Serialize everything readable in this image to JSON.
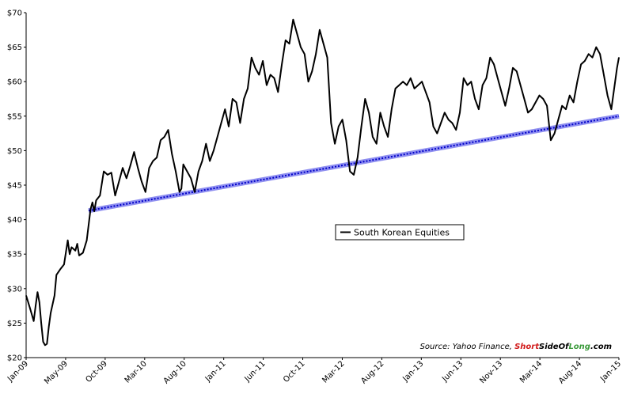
{
  "chart_data": {
    "type": "line",
    "title": "",
    "xlabel": "",
    "ylabel": "",
    "ylim": [
      20,
      70
    ],
    "xlim": [
      "2009-01-01",
      "2015-01-01"
    ],
    "y_ticks": [
      "$20",
      "$25",
      "$30",
      "$35",
      "$40",
      "$45",
      "$50",
      "$55",
      "$60",
      "$65",
      "$70"
    ],
    "x_tick_labels": [
      "Jan-09",
      "May-09",
      "Oct-09",
      "Mar-10",
      "Aug-10",
      "Jan-11",
      "Jun-11",
      "Oct-11",
      "Mar-12",
      "Aug-12",
      "Jan-13",
      "Jun-13",
      "Nov-13",
      "Mar-14",
      "Aug-14",
      "Jan-15"
    ],
    "grid": false,
    "legend": {
      "placement": "center-right",
      "entries": [
        "South Korean Equities"
      ]
    },
    "series": [
      {
        "name": "South Korean Equities",
        "color": "#000000",
        "points": [
          [
            "2009-01-01",
            29.0
          ],
          [
            "2009-01-15",
            27.2
          ],
          [
            "2009-01-29",
            25.3
          ],
          [
            "2009-02-05",
            27.5
          ],
          [
            "2009-02-12",
            29.5
          ],
          [
            "2009-02-19",
            28.0
          ],
          [
            "2009-02-26",
            25.0
          ],
          [
            "2009-03-05",
            22.3
          ],
          [
            "2009-03-12",
            21.8
          ],
          [
            "2009-03-19",
            22.0
          ],
          [
            "2009-03-26",
            24.5
          ],
          [
            "2009-04-02",
            26.5
          ],
          [
            "2009-04-16",
            29.0
          ],
          [
            "2009-04-23",
            32.0
          ],
          [
            "2009-05-07",
            32.8
          ],
          [
            "2009-05-21",
            33.5
          ],
          [
            "2009-06-04",
            37.0
          ],
          [
            "2009-06-11",
            35.0
          ],
          [
            "2009-06-18",
            36.0
          ],
          [
            "2009-07-02",
            35.5
          ],
          [
            "2009-07-09",
            36.5
          ],
          [
            "2009-07-16",
            34.8
          ],
          [
            "2009-07-30",
            35.2
          ],
          [
            "2009-08-13",
            37.0
          ],
          [
            "2009-08-27",
            41.5
          ],
          [
            "2009-09-03",
            42.5
          ],
          [
            "2009-09-10",
            41.2
          ],
          [
            "2009-09-17",
            42.8
          ],
          [
            "2009-10-01",
            43.5
          ],
          [
            "2009-10-15",
            47.0
          ],
          [
            "2009-10-29",
            46.5
          ],
          [
            "2009-11-12",
            46.8
          ],
          [
            "2009-11-26",
            43.5
          ],
          [
            "2009-12-10",
            45.5
          ],
          [
            "2009-12-24",
            47.5
          ],
          [
            "2010-01-07",
            46.0
          ],
          [
            "2010-01-21",
            47.8
          ],
          [
            "2010-02-04",
            49.8
          ],
          [
            "2010-02-18",
            47.5
          ],
          [
            "2010-03-04",
            45.5
          ],
          [
            "2010-03-18",
            44.0
          ],
          [
            "2010-04-01",
            47.5
          ],
          [
            "2010-04-15",
            48.5
          ],
          [
            "2010-04-29",
            49.0
          ],
          [
            "2010-05-13",
            51.5
          ],
          [
            "2010-05-27",
            52.0
          ],
          [
            "2010-06-10",
            53.0
          ],
          [
            "2010-06-24",
            49.5
          ],
          [
            "2010-07-08",
            47.0
          ],
          [
            "2010-07-22",
            44.0
          ],
          [
            "2010-07-29",
            44.5
          ],
          [
            "2010-08-05",
            48.0
          ],
          [
            "2010-08-19",
            47.0
          ],
          [
            "2010-09-02",
            46.0
          ],
          [
            "2010-09-16",
            44.0
          ],
          [
            "2010-09-30",
            47.0
          ],
          [
            "2010-10-14",
            48.5
          ],
          [
            "2010-10-28",
            51.0
          ],
          [
            "2010-11-11",
            48.5
          ],
          [
            "2010-11-25",
            50.0
          ],
          [
            "2010-12-09",
            52.0
          ],
          [
            "2010-12-23",
            54.0
          ],
          [
            "2011-01-06",
            56.0
          ],
          [
            "2011-01-20",
            53.5
          ],
          [
            "2011-02-03",
            57.5
          ],
          [
            "2011-02-17",
            57.0
          ],
          [
            "2011-03-03",
            54.0
          ],
          [
            "2011-03-17",
            57.5
          ],
          [
            "2011-03-31",
            59.0
          ],
          [
            "2011-04-14",
            63.5
          ],
          [
            "2011-04-28",
            62.0
          ],
          [
            "2011-05-12",
            61.0
          ],
          [
            "2011-05-26",
            63.0
          ],
          [
            "2011-06-09",
            59.5
          ],
          [
            "2011-06-23",
            61.0
          ],
          [
            "2011-07-07",
            60.5
          ],
          [
            "2011-07-21",
            58.5
          ],
          [
            "2011-08-04",
            62.5
          ],
          [
            "2011-08-18",
            66.0
          ],
          [
            "2011-09-01",
            65.5
          ],
          [
            "2011-09-15",
            69.0
          ],
          [
            "2011-09-29",
            67.0
          ],
          [
            "2011-10-13",
            65.0
          ],
          [
            "2011-10-27",
            64.0
          ],
          [
            "2011-11-10",
            60.0
          ],
          [
            "2011-11-24",
            61.5
          ],
          [
            "2011-12-08",
            64.0
          ],
          [
            "2011-12-22",
            67.5
          ],
          [
            "2012-01-05",
            65.5
          ],
          [
            "2012-01-19",
            63.5
          ],
          [
            "2012-02-02",
            54.0
          ],
          [
            "2012-02-16",
            51.0
          ],
          [
            "2012-03-01",
            53.5
          ],
          [
            "2012-03-15",
            54.5
          ],
          [
            "2012-03-29",
            51.5
          ],
          [
            "2012-04-12",
            47.0
          ],
          [
            "2012-04-26",
            46.5
          ],
          [
            "2012-05-10",
            49.0
          ],
          [
            "2012-05-24",
            53.5
          ],
          [
            "2012-06-07",
            57.5
          ],
          [
            "2012-06-21",
            55.5
          ],
          [
            "2012-07-05",
            52.0
          ],
          [
            "2012-07-19",
            51.0
          ],
          [
            "2012-08-02",
            55.5
          ],
          [
            "2012-08-16",
            53.5
          ],
          [
            "2012-08-30",
            52.0
          ],
          [
            "2012-09-13",
            56.0
          ],
          [
            "2012-09-27",
            59.0
          ],
          [
            "2012-10-11",
            59.5
          ],
          [
            "2012-10-25",
            60.0
          ],
          [
            "2012-11-08",
            59.5
          ],
          [
            "2012-11-22",
            60.5
          ],
          [
            "2012-12-06",
            59.0
          ],
          [
            "2012-12-20",
            59.5
          ],
          [
            "2013-01-03",
            60.0
          ],
          [
            "2013-01-17",
            58.5
          ],
          [
            "2013-01-31",
            57.0
          ],
          [
            "2013-02-14",
            53.5
          ],
          [
            "2013-02-28",
            52.5
          ],
          [
            "2013-03-14",
            54.0
          ],
          [
            "2013-03-28",
            55.5
          ],
          [
            "2013-04-11",
            54.5
          ],
          [
            "2013-04-25",
            54.0
          ],
          [
            "2013-05-09",
            53.0
          ],
          [
            "2013-05-23",
            55.5
          ],
          [
            "2013-06-06",
            60.5
          ],
          [
            "2013-06-20",
            59.5
          ],
          [
            "2013-07-04",
            60.0
          ],
          [
            "2013-07-18",
            57.5
          ],
          [
            "2013-08-01",
            56.0
          ],
          [
            "2013-08-15",
            59.5
          ],
          [
            "2013-08-29",
            60.5
          ],
          [
            "2013-09-12",
            63.5
          ],
          [
            "2013-09-26",
            62.5
          ],
          [
            "2013-10-10",
            60.5
          ],
          [
            "2013-10-24",
            58.5
          ],
          [
            "2013-11-07",
            56.5
          ],
          [
            "2013-11-21",
            59.0
          ],
          [
            "2013-12-05",
            62.0
          ],
          [
            "2013-12-19",
            61.5
          ],
          [
            "2014-01-02",
            59.5
          ],
          [
            "2014-01-16",
            57.5
          ],
          [
            "2014-01-30",
            55.5
          ],
          [
            "2014-02-13",
            56.0
          ],
          [
            "2014-02-27",
            57.0
          ],
          [
            "2014-03-13",
            58.0
          ],
          [
            "2014-03-27",
            57.5
          ],
          [
            "2014-04-10",
            56.5
          ],
          [
            "2014-04-24",
            51.5
          ],
          [
            "2014-05-08",
            52.5
          ],
          [
            "2014-05-22",
            54.5
          ],
          [
            "2014-06-05",
            56.5
          ],
          [
            "2014-06-19",
            56.0
          ],
          [
            "2014-07-03",
            58.0
          ],
          [
            "2014-07-17",
            57.0
          ],
          [
            "2014-07-31",
            60.0
          ],
          [
            "2014-08-14",
            62.5
          ],
          [
            "2014-08-28",
            63.0
          ],
          [
            "2014-09-11",
            64.0
          ],
          [
            "2014-09-25",
            63.5
          ],
          [
            "2014-10-09",
            65.0
          ],
          [
            "2014-10-23",
            64.0
          ],
          [
            "2014-11-06",
            61.0
          ],
          [
            "2014-11-20",
            58.0
          ],
          [
            "2014-11-27",
            57.0
          ],
          [
            "2014-12-04",
            56.0
          ],
          [
            "2014-12-11",
            58.0
          ],
          [
            "2014-12-18",
            60.0
          ],
          [
            "2014-12-25",
            62.0
          ],
          [
            "2015-01-01",
            63.5
          ]
        ]
      },
      {
        "name": "",
        "style": "trendline",
        "color": "#0000c8",
        "points": [
          [
            "2009-08-20",
            41.3
          ],
          [
            "2015-01-01",
            55.0
          ]
        ]
      }
    ]
  },
  "source": {
    "prefix": "Source: Yahoo Finance, ",
    "brand_short": "Short",
    "brand_side": "SideOf",
    "brand_long": "Long",
    "suffix": ".com",
    "colors": {
      "short": "#d11a1a",
      "side": "#000000",
      "long": "#3a9a3a"
    }
  }
}
